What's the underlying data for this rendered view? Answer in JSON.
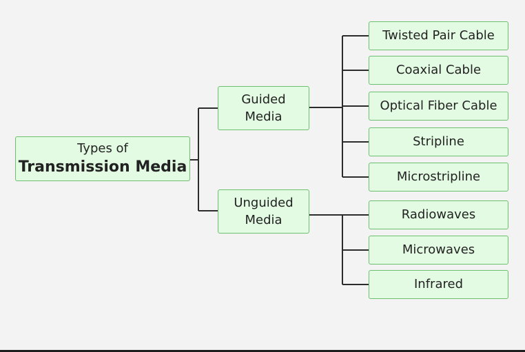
{
  "root": {
    "line1": "Types of",
    "line2": "Transmission Media"
  },
  "guided": {
    "line1": "Guided",
    "line2": "Media"
  },
  "unguided": {
    "line1": "Unguided",
    "line2": "Media"
  },
  "guided_items": [
    "Twisted Pair Cable",
    "Coaxial Cable",
    "Optical Fiber Cable",
    "Stripline",
    "Microstripline"
  ],
  "unguided_items": [
    "Radiowaves",
    "Microwaves",
    "Infrared"
  ],
  "colors": {
    "box_fill": "#e3fbe3",
    "box_border": "#6cbf6c",
    "line": "#2b2b2b",
    "background": "#f3f3f3"
  }
}
